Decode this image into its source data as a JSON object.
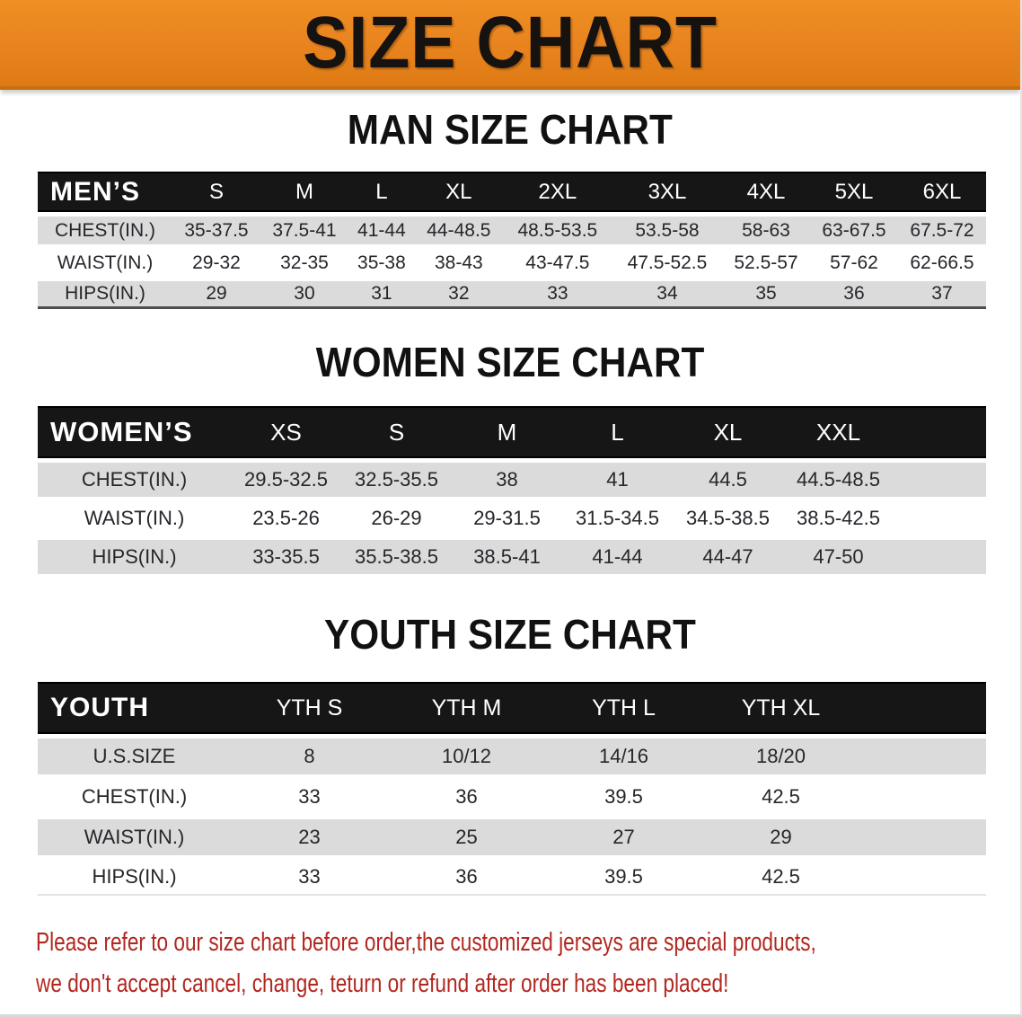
{
  "banner": {
    "title": "SIZE CHART"
  },
  "colors": {
    "banner_orange": "#E8831E",
    "banner_orange_dark": "#C96F10",
    "header_black": "#161616",
    "row_gray": "#DBDBDB",
    "footer_red": "#B2271F",
    "heading_black": "#111111"
  },
  "sections": [
    {
      "heading": "MAN SIZE CHART",
      "header_label": "MEN’S",
      "columns": [
        "S",
        "M",
        "L",
        "XL",
        "2XL",
        "3XL",
        "4XL",
        "5XL",
        "6XL"
      ],
      "rows": [
        {
          "label": "CHEST(IN.)",
          "values": [
            "35-37.5",
            "37.5-41",
            "41-44",
            "44-48.5",
            "48.5-53.5",
            "53.5-58",
            "58-63",
            "63-67.5",
            "67.5-72"
          ]
        },
        {
          "label": "WAIST(IN.)",
          "values": [
            "29-32",
            "32-35",
            "35-38",
            "38-43",
            "43-47.5",
            "47.5-52.5",
            "52.5-57",
            "57-62",
            "62-66.5"
          ]
        },
        {
          "label": "HIPS(IN.)",
          "values": [
            "29",
            "30",
            "31",
            "32",
            "33",
            "34",
            "35",
            "36",
            "37"
          ]
        }
      ]
    },
    {
      "heading": "WOMEN SIZE CHART",
      "header_label": "WOMEN’S",
      "columns": [
        "XS",
        "S",
        "M",
        "L",
        "XL",
        "XXL"
      ],
      "rows": [
        {
          "label": "CHEST(IN.)",
          "values": [
            "29.5-32.5",
            "32.5-35.5",
            "38",
            "41",
            "44.5",
            "44.5-48.5"
          ]
        },
        {
          "label": "WAIST(IN.)",
          "values": [
            "23.5-26",
            "26-29",
            "29-31.5",
            "31.5-34.5",
            "34.5-38.5",
            "38.5-42.5"
          ]
        },
        {
          "label": "HIPS(IN.)",
          "values": [
            "33-35.5",
            "35.5-38.5",
            "38.5-41",
            "41-44",
            "44-47",
            "47-50"
          ]
        }
      ]
    },
    {
      "heading": "YOUTH SIZE CHART",
      "header_label": "YOUTH",
      "columns": [
        "YTH S",
        "YTH M",
        "YTH L",
        "YTH XL"
      ],
      "rows": [
        {
          "label": "U.S.SIZE",
          "values": [
            "8",
            "10/12",
            "14/16",
            "18/20"
          ]
        },
        {
          "label": "CHEST(IN.)",
          "values": [
            "33",
            "36",
            "39.5",
            "42.5"
          ]
        },
        {
          "label": "WAIST(IN.)",
          "values": [
            "23",
            "25",
            "27",
            "29"
          ]
        },
        {
          "label": "HIPS(IN.)",
          "values": [
            "33",
            "36",
            "39.5",
            "42.5"
          ]
        }
      ]
    }
  ],
  "footer": {
    "line1": "Please refer to our size chart before order,the customized jerseys are special products,",
    "line2": "we don't accept cancel, change, teturn or refund after order has been placed!"
  }
}
